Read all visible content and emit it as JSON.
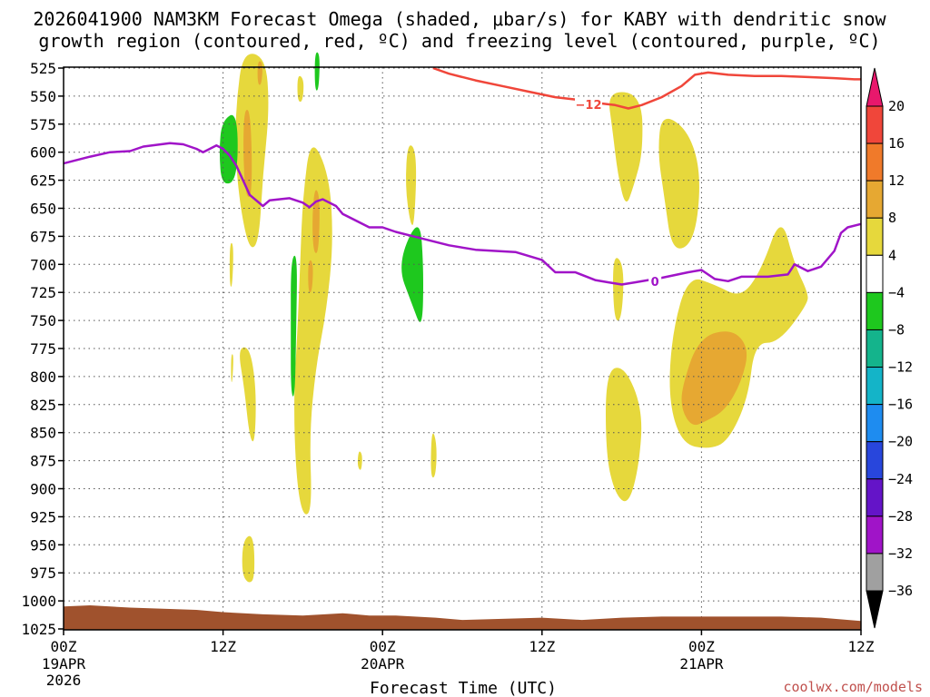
{
  "chart_data": {
    "type": "heatmap",
    "title_line1": "2026041900 NAM3KM Forecast Omega (shaded, μbar/s) for KABY with dendritic snow",
    "title_line2": "growth region (contoured, red, ºC) and freezing level (contoured, purple, ºC)",
    "xlabel": "Forecast Time (UTC)",
    "credit": "coolwx.com/models",
    "x_range_hours": [
      0,
      60
    ],
    "x_ticks": [
      {
        "hour": 0,
        "label": "00Z",
        "date": "19APR",
        "year": "2026"
      },
      {
        "hour": 12,
        "label": "12Z",
        "date": "",
        "year": ""
      },
      {
        "hour": 24,
        "label": "00Z",
        "date": "20APR",
        "year": ""
      },
      {
        "hour": 36,
        "label": "12Z",
        "date": "",
        "year": ""
      },
      {
        "hour": 48,
        "label": "00Z",
        "date": "21APR",
        "year": ""
      },
      {
        "hour": 60,
        "label": "12Z",
        "date": "",
        "year": ""
      }
    ],
    "y_range_hpa": [
      525,
      1025
    ],
    "y_ticks": [
      525,
      550,
      575,
      600,
      625,
      650,
      675,
      700,
      725,
      750,
      775,
      800,
      825,
      850,
      875,
      900,
      925,
      950,
      975,
      1000,
      1025
    ],
    "colorbar": {
      "levels": [
        "20",
        "16",
        "12",
        "8",
        "4",
        "−4",
        "−8",
        "−12",
        "−16",
        "−20",
        "−24",
        "−28",
        "−32",
        "−36"
      ],
      "colors": [
        "#e8186c",
        "#f0463a",
        "#f07a2a",
        "#e6a832",
        "#e6d83c",
        "#ffffff",
        "#1ec81e",
        "#14b48c",
        "#14b4c8",
        "#1e8cf0",
        "#2846dc",
        "#6414c8",
        "#a014c8",
        "#a0a0a0",
        "#000000"
      ]
    },
    "contours": [
      {
        "name": "dendritic-snow-growth",
        "label": "−12",
        "color": "#f0463a",
        "points": [
          [
            27.8,
            525
          ],
          [
            29,
            530
          ],
          [
            31,
            536
          ],
          [
            33,
            541
          ],
          [
            35,
            546
          ],
          [
            37,
            551
          ],
          [
            38.5,
            553
          ],
          [
            40,
            556
          ],
          [
            41.5,
            558
          ],
          [
            42.5,
            561
          ],
          [
            43.5,
            558
          ],
          [
            45,
            551
          ],
          [
            46.5,
            541
          ],
          [
            47.5,
            531
          ],
          [
            48.5,
            529
          ],
          [
            50,
            531
          ],
          [
            52,
            532
          ],
          [
            54,
            532
          ],
          [
            56,
            533
          ],
          [
            58,
            534
          ],
          [
            59.5,
            535
          ],
          [
            60,
            535
          ]
        ],
        "label_at": [
          39.5,
          558
        ]
      },
      {
        "name": "freezing-level",
        "label": "0",
        "color": "#a014c8",
        "points": [
          [
            0,
            610
          ],
          [
            2,
            604
          ],
          [
            3.5,
            600
          ],
          [
            5,
            599
          ],
          [
            6,
            595
          ],
          [
            8,
            592
          ],
          [
            9,
            593
          ],
          [
            10,
            597
          ],
          [
            10.5,
            600
          ],
          [
            11,
            597
          ],
          [
            11.5,
            594
          ],
          [
            12,
            597
          ],
          [
            12.5,
            603
          ],
          [
            13,
            612
          ],
          [
            13.5,
            625
          ],
          [
            14,
            638
          ],
          [
            15,
            648
          ],
          [
            15.5,
            643
          ],
          [
            17,
            641
          ],
          [
            18,
            645
          ],
          [
            18.5,
            649
          ],
          [
            19,
            644
          ],
          [
            19.5,
            642
          ],
          [
            20.5,
            648
          ],
          [
            21,
            655
          ],
          [
            23,
            667
          ],
          [
            24,
            667
          ],
          [
            25,
            671
          ],
          [
            27,
            677
          ],
          [
            29,
            683
          ],
          [
            31,
            687
          ],
          [
            34,
            689
          ],
          [
            36,
            696
          ],
          [
            37,
            707
          ],
          [
            38.5,
            707
          ],
          [
            40,
            714
          ],
          [
            41,
            716
          ],
          [
            42,
            718
          ],
          [
            43,
            716
          ],
          [
            45,
            712
          ],
          [
            47,
            707
          ],
          [
            48,
            705
          ],
          [
            49,
            713
          ],
          [
            50,
            715
          ],
          [
            51,
            711
          ],
          [
            53,
            711
          ],
          [
            54.5,
            709
          ],
          [
            55,
            700
          ],
          [
            56,
            706
          ],
          [
            57,
            702
          ],
          [
            58,
            688
          ],
          [
            58.5,
            672
          ],
          [
            59,
            667
          ],
          [
            60,
            664
          ]
        ],
        "label_at": [
          44.5,
          716
        ]
      }
    ],
    "shaded_regions": [
      {
        "name": "omega-yellow-1",
        "color": "#e6d83c",
        "points": [
          [
            13.5,
            510
          ],
          [
            15.2,
            515
          ],
          [
            15.5,
            560
          ],
          [
            15,
            620
          ],
          [
            14.7,
            680
          ],
          [
            14,
            688
          ],
          [
            13.3,
            650
          ],
          [
            12.9,
            600
          ],
          [
            13,
            555
          ]
        ]
      },
      {
        "name": "omega-orange-1",
        "color": "#e6a832",
        "points": [
          [
            13.6,
            560
          ],
          [
            14.1,
            565
          ],
          [
            14.2,
            640
          ],
          [
            13.7,
            640
          ],
          [
            13.5,
            600
          ]
        ]
      },
      {
        "name": "omega-orange-1b",
        "color": "#e6a832",
        "points": [
          [
            14.6,
            518
          ],
          [
            15,
            520
          ],
          [
            14.9,
            540
          ],
          [
            14.6,
            540
          ]
        ]
      },
      {
        "name": "omega-green-1",
        "color": "#1ec81e",
        "points": [
          [
            11.9,
            572
          ],
          [
            13.1,
            563
          ],
          [
            13.1,
            625
          ],
          [
            11.9,
            630
          ],
          [
            11.7,
            600
          ]
        ]
      },
      {
        "name": "omega-yellow-2",
        "color": "#e6d83c",
        "points": [
          [
            18.6,
            585
          ],
          [
            20,
            620
          ],
          [
            20.3,
            680
          ],
          [
            19.8,
            740
          ],
          [
            19,
            790
          ],
          [
            18.5,
            850
          ],
          [
            18.7,
            920
          ],
          [
            18,
            925
          ],
          [
            17.5,
            890
          ],
          [
            17.3,
            820
          ],
          [
            17.6,
            760
          ],
          [
            17.8,
            700
          ],
          [
            18,
            640
          ]
        ]
      },
      {
        "name": "omega-orange-2",
        "color": "#e6a832",
        "points": [
          [
            18.9,
            630
          ],
          [
            19.3,
            640
          ],
          [
            19.2,
            690
          ],
          [
            18.8,
            690
          ],
          [
            18.7,
            660
          ]
        ]
      },
      {
        "name": "omega-orange-2b",
        "color": "#e6a832",
        "points": [
          [
            18.4,
            695
          ],
          [
            18.8,
            698
          ],
          [
            18.7,
            725
          ],
          [
            18.4,
            725
          ]
        ]
      },
      {
        "name": "omega-green-3",
        "color": "#1ec81e",
        "points": [
          [
            18.9,
            510
          ],
          [
            19.3,
            512
          ],
          [
            19.2,
            545
          ],
          [
            18.9,
            545
          ]
        ]
      },
      {
        "name": "omega-yellow-3",
        "color": "#e6d83c",
        "points": [
          [
            17.6,
            530
          ],
          [
            18.1,
            535
          ],
          [
            18,
            555
          ],
          [
            17.6,
            555
          ]
        ]
      },
      {
        "name": "omega-green-2",
        "color": "#1ec81e",
        "points": [
          [
            17.1,
            695
          ],
          [
            17.6,
            690
          ],
          [
            17.5,
            760
          ],
          [
            17.4,
            820
          ],
          [
            17.1,
            815
          ],
          [
            17.1,
            760
          ]
        ]
      },
      {
        "name": "omega-yellow-4",
        "color": "#e6d83c",
        "points": [
          [
            25.9,
            590
          ],
          [
            26.6,
            600
          ],
          [
            26.4,
            665
          ],
          [
            26.1,
            665
          ],
          [
            25.7,
            630
          ]
        ]
      },
      {
        "name": "omega-green-4",
        "color": "#1ec81e",
        "points": [
          [
            25.1,
            700
          ],
          [
            26.8,
            655
          ],
          [
            27.1,
            705
          ],
          [
            27,
            760
          ],
          [
            26.2,
            735
          ]
        ]
      },
      {
        "name": "omega-yellow-5",
        "color": "#e6d83c",
        "points": [
          [
            27.7,
            845
          ],
          [
            28.1,
            860
          ],
          [
            28,
            890
          ],
          [
            27.6,
            890
          ]
        ]
      },
      {
        "name": "omega-yellow-6",
        "color": "#e6d83c",
        "points": [
          [
            22.2,
            865
          ],
          [
            22.5,
            870
          ],
          [
            22.4,
            885
          ],
          [
            22.1,
            880
          ]
        ]
      },
      {
        "name": "omega-yellow-7",
        "color": "#e6d83c",
        "points": [
          [
            13.1,
            775
          ],
          [
            14,
            773
          ],
          [
            14.5,
            810
          ],
          [
            14.4,
            860
          ],
          [
            14,
            855
          ],
          [
            13.6,
            810
          ]
        ]
      },
      {
        "name": "omega-yellow-8",
        "color": "#e6d83c",
        "points": [
          [
            13.5,
            945
          ],
          [
            14.3,
            940
          ],
          [
            14.4,
            980
          ],
          [
            13.9,
            985
          ],
          [
            13.4,
            975
          ]
        ]
      },
      {
        "name": "omega-yellow-9",
        "color": "#e6d83c",
        "points": [
          [
            12.5,
            680
          ],
          [
            12.8,
            682
          ],
          [
            12.7,
            720
          ],
          [
            12.5,
            720
          ]
        ]
      },
      {
        "name": "omega-yellow-9b",
        "color": "#e6d83c",
        "points": [
          [
            12.6,
            780
          ],
          [
            12.8,
            780
          ],
          [
            12.7,
            805
          ],
          [
            12.6,
            805
          ]
        ]
      },
      {
        "name": "omega-yellow-10",
        "color": "#e6d83c",
        "points": [
          [
            40.9,
            545
          ],
          [
            43.5,
            548
          ],
          [
            43.6,
            600
          ],
          [
            42.9,
            630
          ],
          [
            42.3,
            650
          ],
          [
            41.7,
            620
          ],
          [
            41.3,
            580
          ]
        ]
      },
      {
        "name": "omega-yellow-11",
        "color": "#e6d83c",
        "points": [
          [
            45,
            565
          ],
          [
            47,
            580
          ],
          [
            48,
            620
          ],
          [
            47.5,
            680
          ],
          [
            45.8,
            690
          ],
          [
            45.2,
            640
          ],
          [
            44.7,
            600
          ]
        ]
      },
      {
        "name": "omega-yellow-12",
        "color": "#e6d83c",
        "points": [
          [
            41.3,
            690
          ],
          [
            42.2,
            700
          ],
          [
            42,
            750
          ],
          [
            41.4,
            750
          ]
        ]
      },
      {
        "name": "omega-yellow-13",
        "color": "#e6d83c",
        "points": [
          [
            40.8,
            795
          ],
          [
            42.2,
            790
          ],
          [
            43.6,
            830
          ],
          [
            43.3,
            880
          ],
          [
            42.5,
            915
          ],
          [
            41.5,
            905
          ],
          [
            40.8,
            870
          ]
        ]
      },
      {
        "name": "omega-yellow-14",
        "color": "#e6d83c",
        "points": [
          [
            45.8,
            760
          ],
          [
            47,
            710
          ],
          [
            49,
            718
          ],
          [
            51,
            730
          ],
          [
            52.5,
            705
          ],
          [
            54,
            655
          ],
          [
            55,
            700
          ],
          [
            56,
            725
          ],
          [
            56,
            735
          ],
          [
            53.8,
            770
          ],
          [
            52,
            770
          ],
          [
            51.5,
            820
          ],
          [
            50,
            858
          ],
          [
            48.5,
            865
          ],
          [
            46.5,
            860
          ],
          [
            45.5,
            820
          ]
        ]
      },
      {
        "name": "omega-orange-14",
        "color": "#e6a832",
        "points": [
          [
            46.5,
            810
          ],
          [
            47.8,
            765
          ],
          [
            50.3,
            757
          ],
          [
            51.6,
            775
          ],
          [
            51,
            805
          ],
          [
            49.8,
            830
          ],
          [
            48.3,
            840
          ],
          [
            47.3,
            845
          ],
          [
            46.5,
            830
          ]
        ]
      }
    ],
    "terrain_color": "#a0522d",
    "terrain_points": [
      [
        0,
        1005
      ],
      [
        2,
        1004
      ],
      [
        5,
        1006
      ],
      [
        10,
        1008
      ],
      [
        12,
        1010
      ],
      [
        15,
        1012
      ],
      [
        18,
        1013
      ],
      [
        21,
        1011
      ],
      [
        23,
        1013
      ],
      [
        25,
        1013
      ],
      [
        28,
        1015
      ],
      [
        30,
        1017
      ],
      [
        33,
        1016
      ],
      [
        36,
        1015
      ],
      [
        39,
        1017
      ],
      [
        42,
        1015
      ],
      [
        45,
        1014
      ],
      [
        48,
        1014
      ],
      [
        51,
        1014
      ],
      [
        54,
        1014
      ],
      [
        57,
        1015
      ],
      [
        60,
        1018
      ]
    ]
  }
}
